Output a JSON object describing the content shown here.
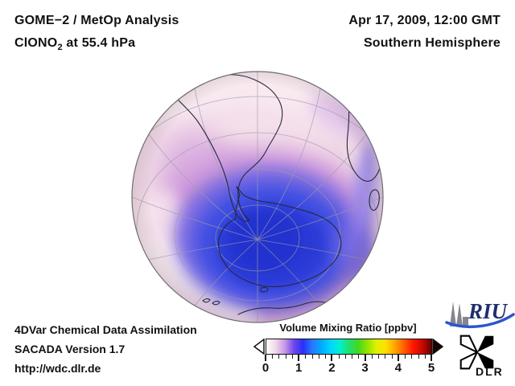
{
  "title_block": {
    "line1": "GOME−2 / MetOp Analysis",
    "species_prefix": "ClONO",
    "species_sub": "2",
    "species_suffix": " at 55.4 hPa"
  },
  "datetime_block": {
    "date": "Apr 17, 2009, 12:00 GMT",
    "hemisphere": "Southern Hemisphere"
  },
  "credits": {
    "line1": "4DVar Chemical Data Assimilation",
    "line2": "SACADA Version 1.7",
    "line3": "http://wdc.dlr.de"
  },
  "colorbar": {
    "title": "Volume Mixing Ratio [ppbv]",
    "tick_labels": [
      "0",
      "1",
      "2",
      "3",
      "4",
      "5"
    ],
    "minor_ticks_per_interval": 4,
    "range": [
      0,
      5
    ],
    "gradient": [
      "#ffffff",
      "#f0d8e8",
      "#c898e8",
      "#7048ec",
      "#2830f8",
      "#2878ff",
      "#00aaff",
      "#00d4ff",
      "#00f0d0",
      "#20e070",
      "#40d820",
      "#90e400",
      "#e0f000",
      "#ffe000",
      "#ffa800",
      "#ff6000",
      "#ff1800",
      "#cc0800",
      "#660000"
    ]
  },
  "logos": {
    "riu": "RIU",
    "dlr": "DLR"
  },
  "map": {
    "colors": {
      "base": "#f4dde6",
      "light_band": "#fdf3f6",
      "lavender": "#eccfe8",
      "purple": "#c98fd9",
      "violet": "#7468e2",
      "blue": "#3f50e2",
      "deep_blue": "#2a3ad6",
      "graticule": "#9b9baa",
      "coastline": "#28283c",
      "rim": "#6d6d76",
      "riu_navy": "#1e2e6e",
      "riu_swoosh": "#2f55cc",
      "riu_gray": "#85858f",
      "dlr_black": "#000000"
    }
  }
}
